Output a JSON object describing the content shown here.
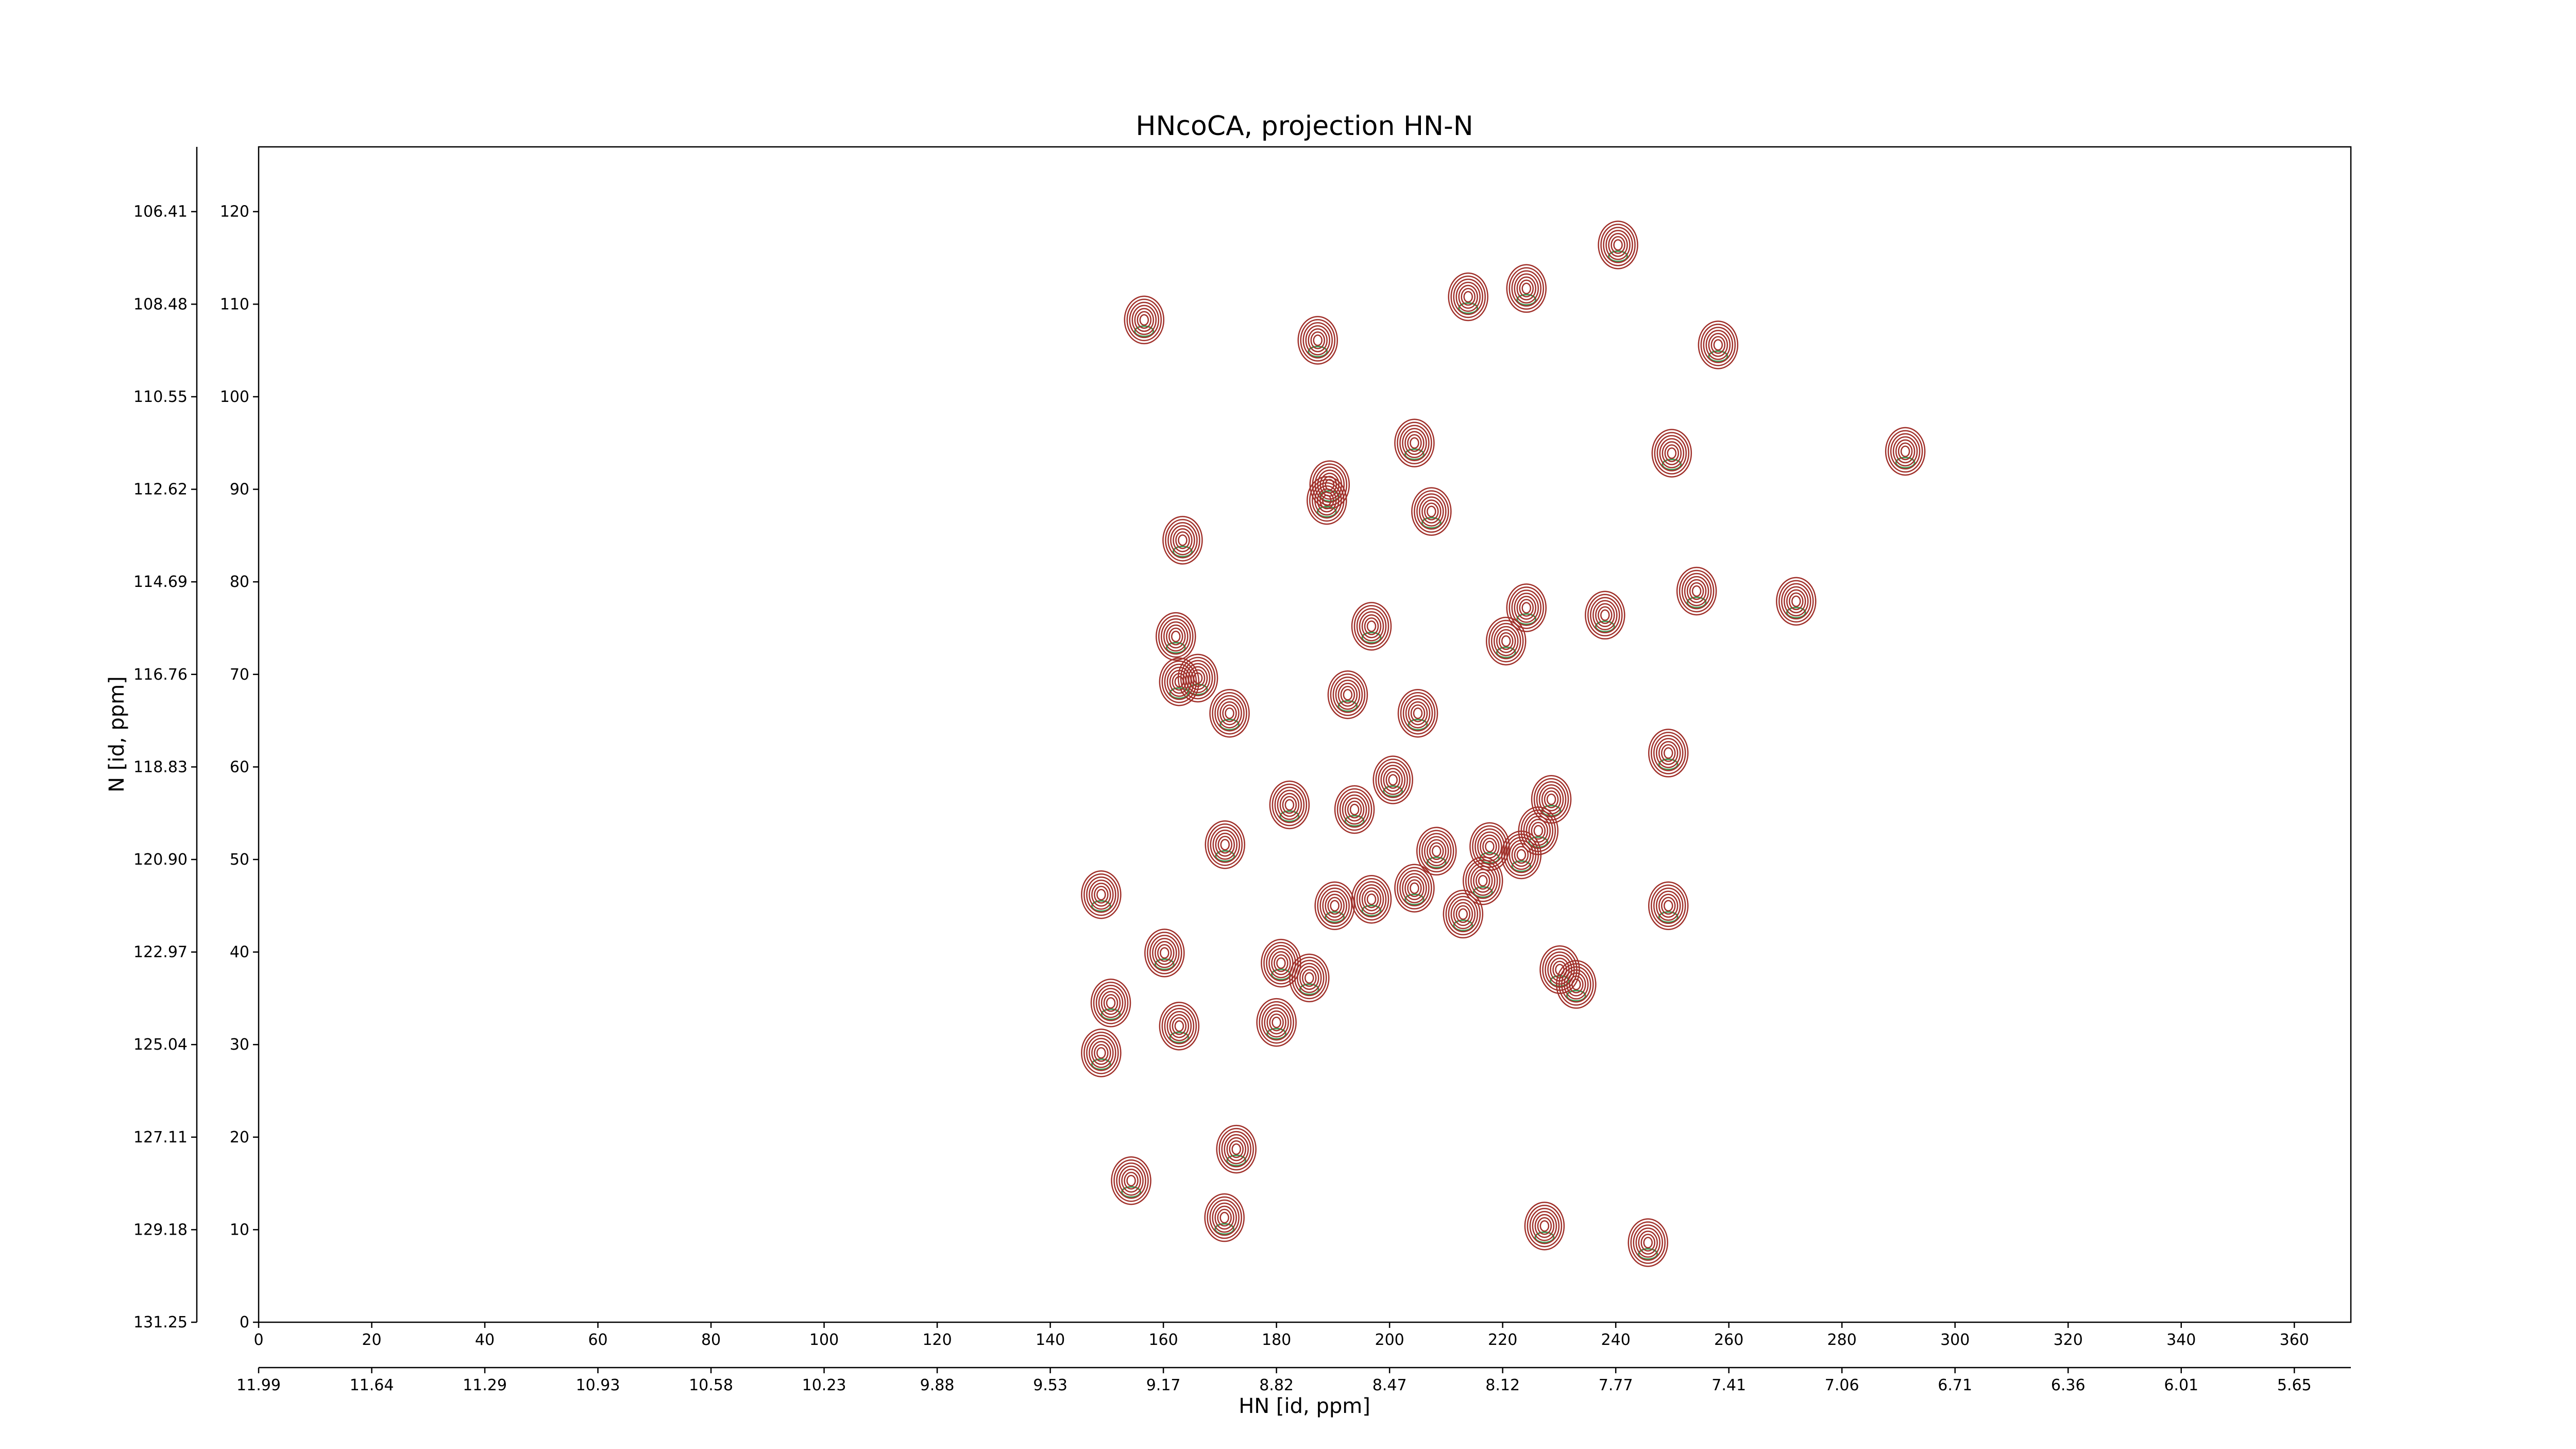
{
  "chart_data": {
    "type": "contour",
    "title": "HNcoCA, projection HN-N",
    "xlabel": "HN [id, ppm]",
    "ylabel": "N [id, ppm]",
    "color": "#a0302a",
    "xlim": [
      0,
      370
    ],
    "ylim": [
      0,
      127
    ],
    "xticks": [
      0,
      20,
      40,
      60,
      80,
      100,
      120,
      140,
      160,
      180,
      200,
      220,
      240,
      260,
      280,
      300,
      320,
      340,
      360
    ],
    "yticks": [
      0,
      10,
      20,
      30,
      40,
      50,
      60,
      70,
      80,
      90,
      100,
      110,
      120
    ],
    "x2ticks": [
      {
        "value": 0,
        "label": "11.99"
      },
      {
        "value": 20,
        "label": "11.64"
      },
      {
        "value": 40,
        "label": "11.29"
      },
      {
        "value": 60,
        "label": "10.93"
      },
      {
        "value": 80,
        "label": "10.58"
      },
      {
        "value": 100,
        "label": "10.23"
      },
      {
        "value": 120,
        "label": "9.88"
      },
      {
        "value": 140,
        "label": "9.53"
      },
      {
        "value": 160,
        "label": "9.17"
      },
      {
        "value": 180,
        "label": "8.82"
      },
      {
        "value": 200,
        "label": "8.47"
      },
      {
        "value": 220,
        "label": "8.12"
      },
      {
        "value": 240,
        "label": "7.77"
      },
      {
        "value": 260,
        "label": "7.41"
      },
      {
        "value": 280,
        "label": "7.06"
      },
      {
        "value": 300,
        "label": "6.71"
      },
      {
        "value": 320,
        "label": "6.36"
      },
      {
        "value": 340,
        "label": "6.01"
      },
      {
        "value": 360,
        "label": "5.65"
      }
    ],
    "y2ticks": [
      {
        "value": 0,
        "label": "131.25"
      },
      {
        "value": 10,
        "label": "129.18"
      },
      {
        "value": 20,
        "label": "127.11"
      },
      {
        "value": 30,
        "label": "125.04"
      },
      {
        "value": 40,
        "label": "122.97"
      },
      {
        "value": 50,
        "label": "120.90"
      },
      {
        "value": 60,
        "label": "118.83"
      },
      {
        "value": 70,
        "label": "116.76"
      },
      {
        "value": 80,
        "label": "114.69"
      },
      {
        "value": 90,
        "label": "112.62"
      },
      {
        "value": 100,
        "label": "110.55"
      },
      {
        "value": 110,
        "label": "108.48"
      },
      {
        "value": 120,
        "label": "106.41"
      }
    ],
    "x": [
      156.6,
      213.9,
      224.2,
      240.4,
      187.3,
      258.1,
      204.4,
      249.9,
      291.2,
      189.4,
      188.9,
      207.4,
      163.4,
      254.3,
      271.9,
      224.2,
      238.1,
      196.8,
      162.2,
      220.6,
      166.1,
      162.8,
      192.6,
      171.7,
      205.0,
      249.3,
      200.6,
      182.3,
      193.8,
      228.6,
      170.9,
      208.3,
      217.7,
      226.3,
      223.3,
      149.0,
      204.4,
      216.5,
      190.3,
      196.8,
      213.0,
      249.3,
      160.2,
      180.8,
      185.8,
      230.1,
      233.0,
      150.7,
      162.8,
      180.0,
      149.0,
      172.9,
      154.3,
      170.8,
      227.4,
      245.7
    ],
    "values": [
      108.3,
      110.8,
      111.7,
      116.4,
      106.1,
      105.6,
      95.0,
      93.9,
      94.1,
      90.5,
      88.8,
      87.6,
      84.5,
      79.0,
      77.9,
      77.2,
      76.4,
      75.2,
      74.1,
      73.6,
      69.6,
      69.2,
      67.8,
      65.8,
      65.8,
      61.5,
      58.6,
      55.9,
      55.4,
      56.5,
      51.6,
      50.9,
      51.4,
      53.1,
      50.5,
      46.2,
      46.9,
      47.7,
      45.0,
      45.7,
      44.1,
      45.0,
      39.9,
      38.8,
      37.2,
      38.1,
      36.5,
      34.5,
      32.0,
      32.4,
      29.1,
      18.7,
      15.3,
      11.3,
      10.4,
      8.6
    ]
  }
}
